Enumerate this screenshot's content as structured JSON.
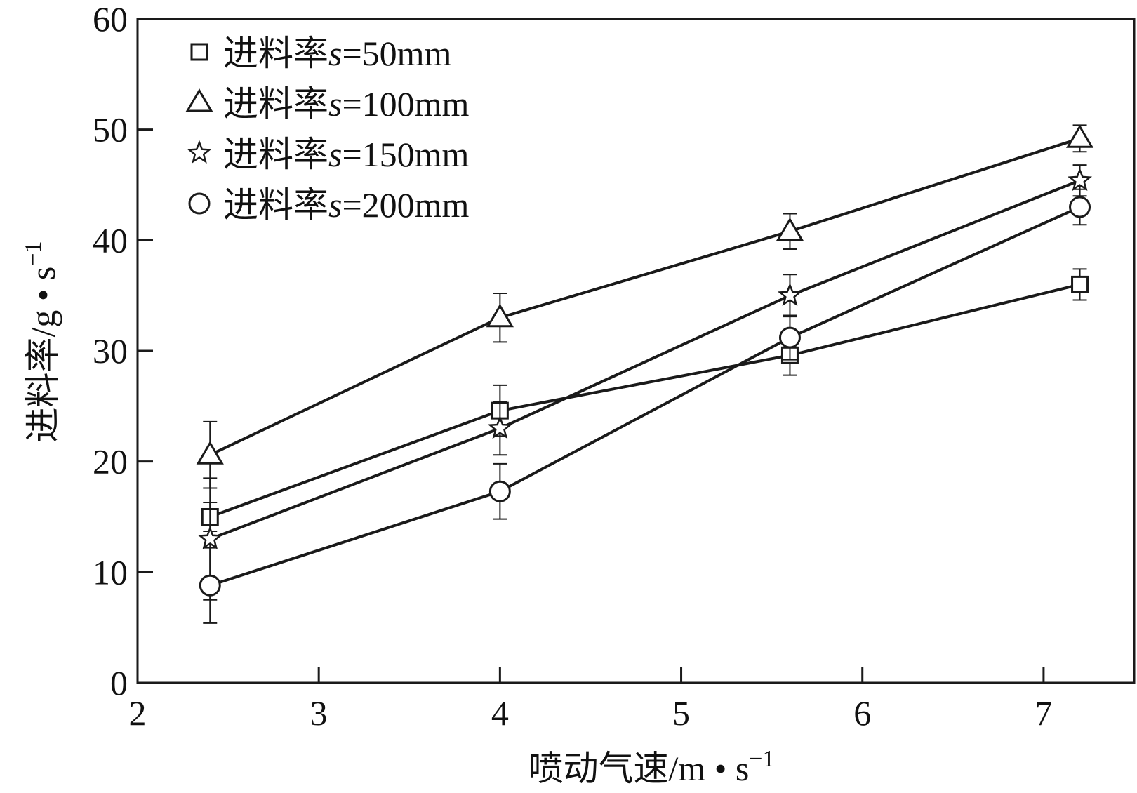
{
  "chart_data": {
    "type": "line",
    "xlabel": "喷动气速/m • s",
    "xlabel_sup": "−1",
    "ylabel": "进料率/g • s",
    "ylabel_sup": "−1",
    "xlim": [
      2,
      7.5
    ],
    "ylim": [
      0,
      60
    ],
    "xticks": [
      2,
      3,
      4,
      5,
      6,
      7
    ],
    "yticks": [
      0,
      10,
      20,
      30,
      40,
      50,
      60
    ],
    "grid": false,
    "legend_position": "top-left",
    "x": [
      2.4,
      4.0,
      5.6,
      7.2
    ],
    "series": [
      {
        "name": "进料率s=50mm",
        "prefix": "进料率",
        "var": "s",
        "suffix": "=50mm",
        "marker": "square",
        "values": [
          15.0,
          24.6,
          29.6,
          36.0
        ],
        "err": [
          1.3,
          2.3,
          1.8,
          1.4
        ]
      },
      {
        "name": "进料率s=100mm",
        "prefix": "进料率",
        "var": "s",
        "suffix": "=100mm",
        "marker": "triangle",
        "values": [
          20.6,
          33.0,
          40.8,
          49.2
        ],
        "err": [
          3.0,
          2.2,
          1.6,
          1.2
        ]
      },
      {
        "name": "进料率s=150mm",
        "prefix": "进料率",
        "var": "s",
        "suffix": "=150mm",
        "marker": "star",
        "values": [
          13.0,
          23.0,
          35.0,
          45.4
        ],
        "err": [
          5.5,
          2.4,
          1.9,
          1.4
        ]
      },
      {
        "name": "进料率s=200mm",
        "prefix": "进料率",
        "var": "s",
        "suffix": "=200mm",
        "marker": "circle",
        "values": [
          8.8,
          17.3,
          31.2,
          43.0
        ],
        "err": [
          3.4,
          2.5,
          2.0,
          1.6
        ]
      }
    ],
    "colors": {
      "line": "#1a1a1a",
      "marker_fill": "#ffffff"
    }
  }
}
